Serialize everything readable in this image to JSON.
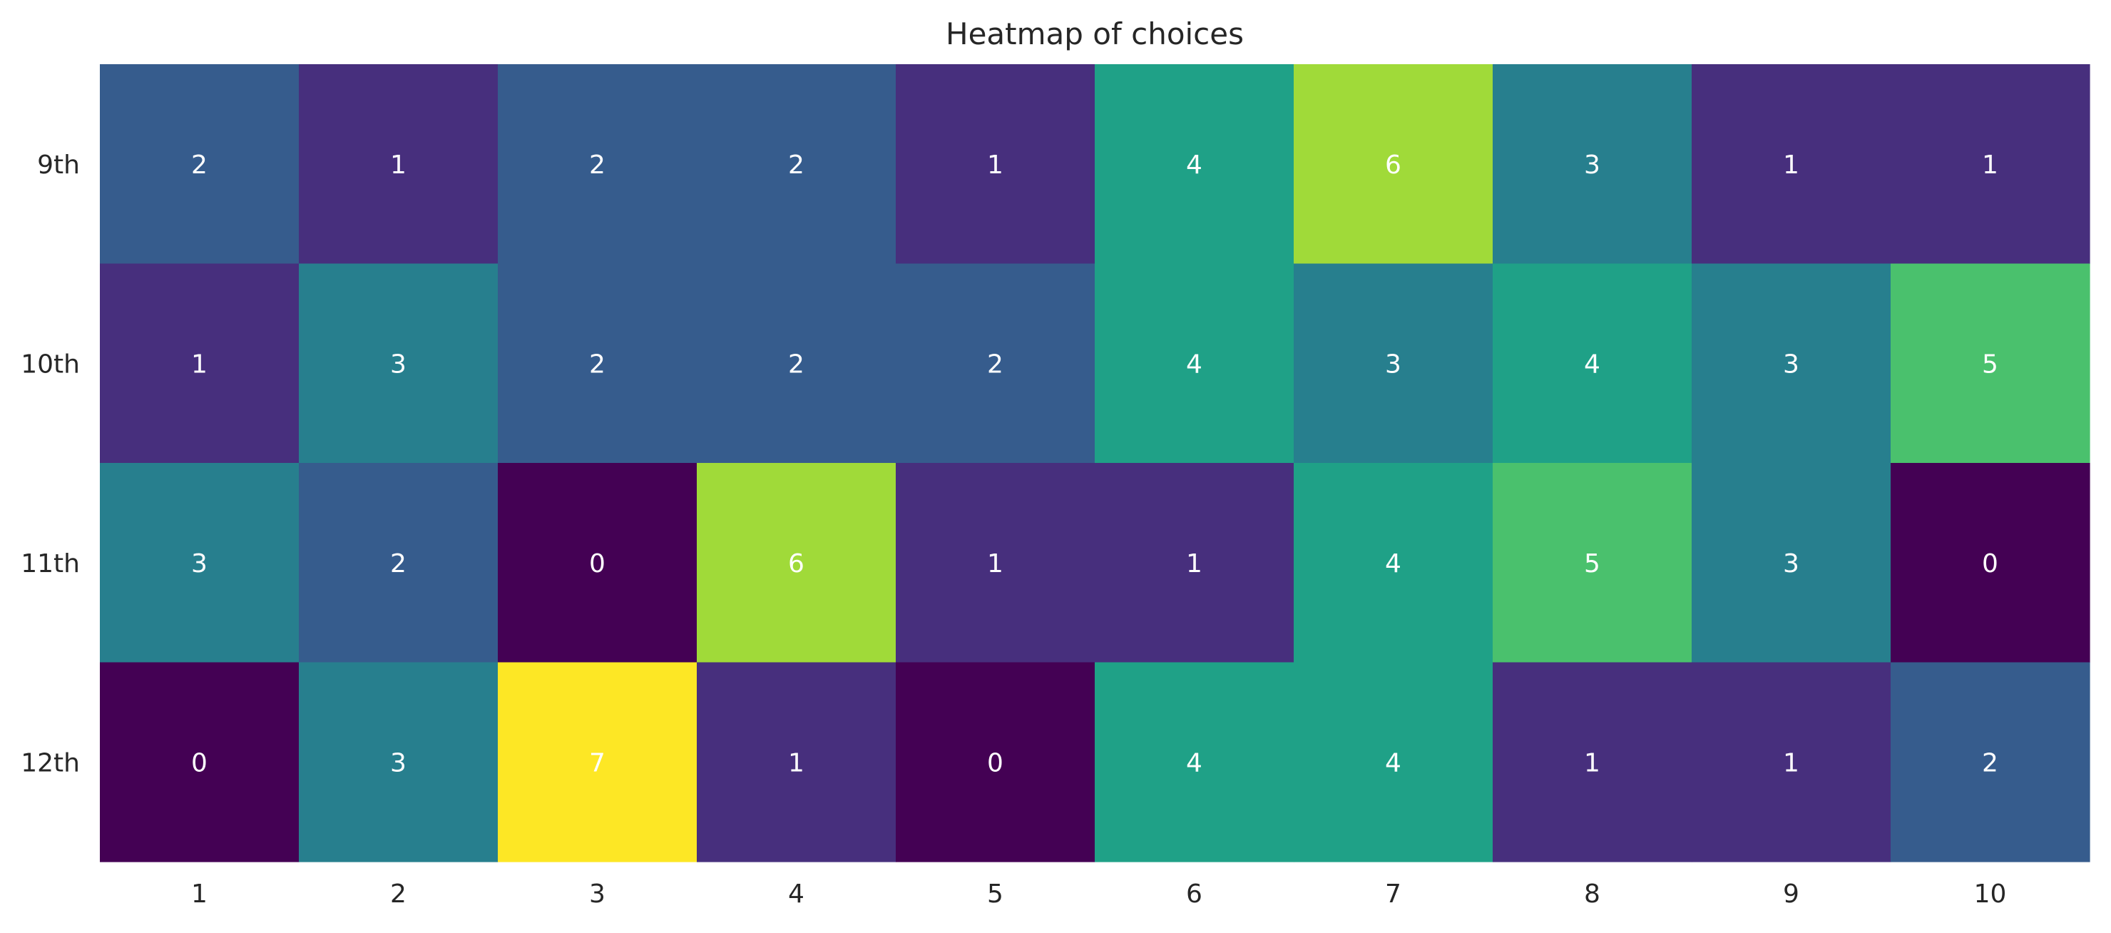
{
  "chart_data": {
    "type": "heatmap",
    "title": "Heatmap of choices",
    "xlabel": "",
    "ylabel": "",
    "x_categories": [
      "1",
      "2",
      "3",
      "4",
      "5",
      "6",
      "7",
      "8",
      "9",
      "10"
    ],
    "y_categories": [
      "9th",
      "10th",
      "11th",
      "12th"
    ],
    "values": [
      [
        2,
        1,
        2,
        2,
        1,
        4,
        6,
        3,
        1,
        1
      ],
      [
        1,
        3,
        2,
        2,
        2,
        4,
        3,
        4,
        3,
        5
      ],
      [
        3,
        2,
        0,
        6,
        1,
        1,
        4,
        5,
        3,
        0
      ],
      [
        0,
        3,
        7,
        1,
        0,
        4,
        4,
        1,
        1,
        2
      ]
    ],
    "value_range": [
      0,
      7
    ],
    "colormap": "viridis",
    "colors": {
      "0": "#440154",
      "1": "#472f7d",
      "2": "#365c8d",
      "3": "#277f8e",
      "4": "#1fa187",
      "5": "#4ac16d",
      "6": "#a0da39",
      "7": "#fde725"
    },
    "annotations": true,
    "grid": false,
    "legend": "none"
  }
}
